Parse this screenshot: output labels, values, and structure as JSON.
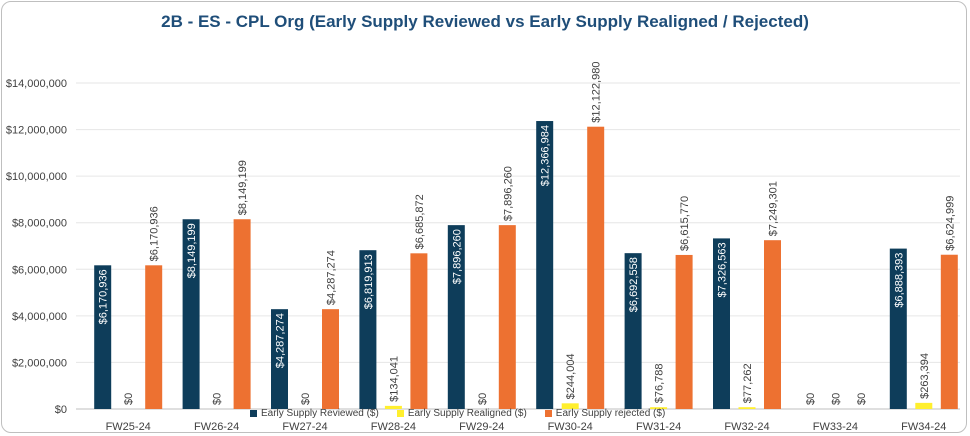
{
  "chart_data": {
    "type": "bar",
    "title": "2B - ES - CPL Org (Early Supply Reviewed vs Early Supply Realigned / Rejected)",
    "categories": [
      "FW25-24",
      "FW26-24",
      "FW27-24",
      "FW28-24",
      "FW29-24",
      "FW30-24",
      "FW31-24",
      "FW32-24",
      "FW33-24",
      "FW34-24"
    ],
    "ylim": [
      0,
      14000000
    ],
    "yticks": [
      0,
      2000000,
      4000000,
      6000000,
      8000000,
      10000000,
      12000000,
      14000000
    ],
    "ytick_labels": [
      "$0",
      "$2,000,000",
      "$4,000,000",
      "$6,000,000",
      "$8,000,000",
      "$10,000,000",
      "$12,000,000",
      "$14,000,000"
    ],
    "legend_position": "bottom",
    "series": [
      {
        "name": "Early Supply Reviewed ($)",
        "color": "#0e3d5a",
        "values": [
          6170936,
          8149199,
          4287274,
          6819913,
          7896260,
          12366984,
          6692558,
          7326563,
          0,
          6888393
        ],
        "labels": [
          "$6,170,936",
          "$8,149,199",
          "$4,287,274",
          "$6,819,913",
          "$7,896,260",
          "$12,366,984",
          "$6,692,558",
          "$7,326,563",
          "$0",
          "$6,888,393"
        ]
      },
      {
        "name": "Early Supply Realigned ($)",
        "color": "#ffef2e",
        "values": [
          0,
          0,
          0,
          134041,
          0,
          244004,
          76788,
          77262,
          0,
          263394
        ],
        "labels": [
          "$0",
          "$0",
          "$0",
          "$134,041",
          "$0",
          "$244,004",
          "$76,788",
          "$77,262",
          "$0",
          "$263,394"
        ]
      },
      {
        "name": "Early Supply rejected ($)",
        "color": "#ed7131",
        "values": [
          6170936,
          8149199,
          4287274,
          6685872,
          7896260,
          12122980,
          6615770,
          7249301,
          0,
          6624999
        ],
        "labels": [
          "$6,170,936",
          "$8,149,199",
          "$4,287,274",
          "$6,685,872",
          "$7,896,260",
          "$12,122,980",
          "$6,615,770",
          "$7,249,301",
          "$0",
          "$6,624,999"
        ]
      }
    ]
  }
}
